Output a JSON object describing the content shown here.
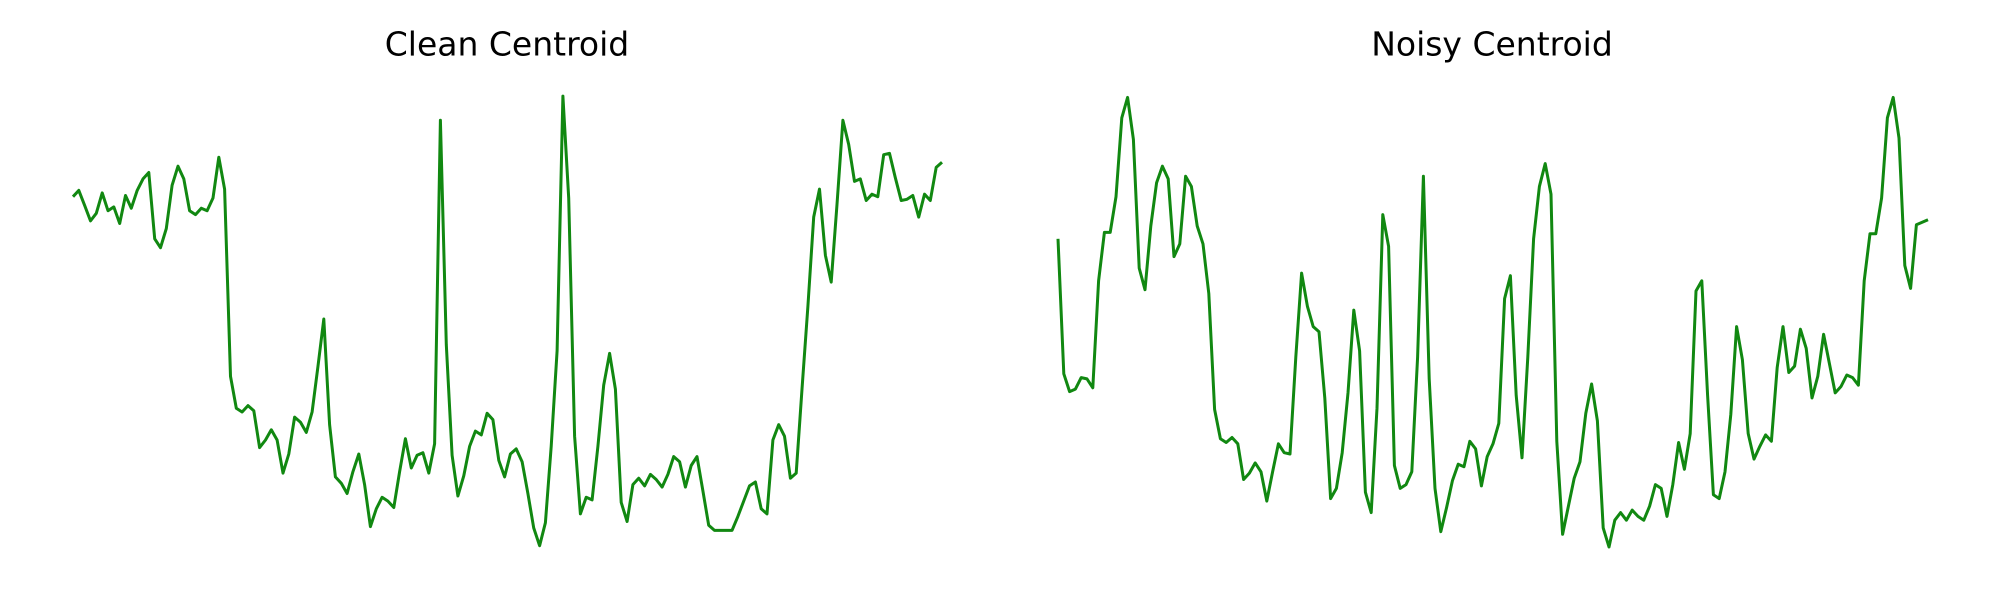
{
  "chart_data": [
    {
      "type": "line",
      "title": "Clean Centroid",
      "color": "#118811",
      "ylim": [
        0,
        380
      ],
      "values": [
        286,
        291,
        279,
        267,
        273,
        289,
        275,
        278,
        265,
        287,
        277,
        291,
        300,
        305,
        253,
        246,
        261,
        295,
        310,
        300,
        275,
        272,
        277,
        275,
        285,
        317,
        292,
        145,
        120,
        117,
        122,
        118,
        89,
        95,
        103,
        95,
        69,
        84,
        113,
        109,
        101,
        117,
        153,
        190,
        107,
        66,
        61,
        53,
        70,
        84,
        60,
        27,
        41,
        50,
        47,
        42,
        70,
        96,
        73,
        83,
        85,
        69,
        92,
        346,
        170,
        83,
        51,
        67,
        90,
        102,
        99,
        116,
        111,
        79,
        66,
        84,
        88,
        78,
        53,
        26,
        12,
        30,
        90,
        165,
        365,
        285,
        98,
        37,
        50,
        48,
        90,
        138,
        163,
        135,
        46,
        31,
        60,
        65,
        59,
        68,
        64,
        58,
        68,
        82,
        78,
        58,
        75,
        82,
        55,
        28,
        24,
        24,
        24,
        24,
        35,
        47,
        59,
        62,
        41,
        37,
        95,
        107,
        98,
        65,
        69,
        135,
        200,
        270,
        292,
        240,
        219,
        280,
        346,
        327,
        298,
        300,
        283,
        288,
        286,
        319,
        320,
        301,
        283,
        284,
        287,
        270,
        288,
        283,
        309,
        313
      ]
    },
    {
      "type": "line",
      "title": "Noisy Centroid",
      "color": "#118811",
      "ylim": [
        0,
        380
      ],
      "values": [
        253,
        147,
        133,
        135,
        144,
        143,
        136,
        220,
        258,
        258,
        286,
        348,
        364,
        331,
        230,
        213,
        263,
        297,
        310,
        300,
        239,
        249,
        302,
        294,
        263,
        249,
        210,
        119,
        96,
        93,
        97,
        92,
        64,
        69,
        77,
        70,
        47,
        70,
        92,
        85,
        84,
        160,
        226,
        200,
        184,
        180,
        128,
        49,
        57,
        85,
        132,
        197,
        165,
        54,
        38,
        120,
        272,
        247,
        75,
        57,
        60,
        70,
        160,
        302,
        143,
        57,
        23,
        42,
        63,
        76,
        74,
        94,
        88,
        59,
        82,
        92,
        108,
        206,
        224,
        130,
        81,
        160,
        253,
        294,
        312,
        288,
        94,
        21,
        43,
        65,
        78,
        116,
        139,
        110,
        26,
        11,
        32,
        38,
        32,
        40,
        35,
        32,
        43,
        60,
        57,
        35,
        60,
        93,
        72,
        100,
        212,
        220,
        130,
        52,
        49,
        70,
        115,
        184,
        158,
        100,
        80,
        90,
        99,
        94,
        152,
        184,
        148,
        153,
        182,
        167,
        128,
        145,
        178,
        155,
        132,
        137,
        146,
        144,
        138,
        220,
        257,
        257,
        285,
        348,
        364,
        332,
        232,
        214,
        264,
        266,
        268
      ]
    }
  ]
}
